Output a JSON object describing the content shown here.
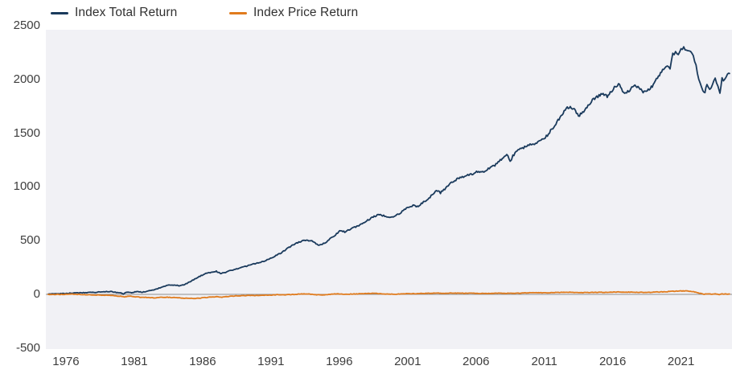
{
  "legend": {
    "items": [
      {
        "label": "Index Total Return",
        "color": "#1a3a5c"
      },
      {
        "label": "Index Price Return",
        "color": "#e07b1d"
      }
    ]
  },
  "axes": {
    "y_ticks": [
      "2500",
      "2000",
      "1500",
      "1000",
      "500",
      "0",
      "-500"
    ],
    "y_tick_values": [
      2500,
      2000,
      1500,
      1000,
      500,
      0,
      -500
    ],
    "x_ticks": [
      "1976",
      "1981",
      "1986",
      "1991",
      "1996",
      "2001",
      "2006",
      "2011",
      "2016",
      "2021"
    ],
    "x_tick_values": [
      1976,
      1981,
      1986,
      1991,
      1996,
      2001,
      2006,
      2011,
      2016,
      2021
    ]
  },
  "chart_data": {
    "type": "line",
    "title": "",
    "xlabel": "",
    "ylabel": "",
    "x_range": [
      1974.53,
      2024.73
    ],
    "y_range": [
      -509,
      2462
    ],
    "grid": false,
    "zero_line": true,
    "zero_line_color": "#909090",
    "plot_background": "#f1f1f5",
    "legend_position": "top-left",
    "series": [
      {
        "name": "Index Total Return",
        "color": "#1a3a5c",
        "points": [
          [
            1974.7,
            2
          ],
          [
            1975.2,
            5
          ],
          [
            1975.7,
            7
          ],
          [
            1976.2,
            10
          ],
          [
            1976.7,
            13
          ],
          [
            1977.2,
            15
          ],
          [
            1977.7,
            17
          ],
          [
            1978.2,
            20
          ],
          [
            1978.7,
            23
          ],
          [
            1979.2,
            27
          ],
          [
            1979.6,
            20
          ],
          [
            1980.0,
            12
          ],
          [
            1980.2,
            4
          ],
          [
            1980.5,
            22
          ],
          [
            1980.8,
            16
          ],
          [
            1981.2,
            25
          ],
          [
            1981.6,
            21
          ],
          [
            1982.0,
            30
          ],
          [
            1982.4,
            40
          ],
          [
            1982.8,
            58
          ],
          [
            1983.2,
            76
          ],
          [
            1983.6,
            88
          ],
          [
            1984.0,
            86
          ],
          [
            1984.3,
            80
          ],
          [
            1984.7,
            92
          ],
          [
            1985.1,
            118
          ],
          [
            1985.5,
            148
          ],
          [
            1985.9,
            175
          ],
          [
            1986.3,
            197
          ],
          [
            1986.7,
            209
          ],
          [
            1987.0,
            215
          ],
          [
            1987.3,
            195
          ],
          [
            1987.6,
            202
          ],
          [
            1988.0,
            221
          ],
          [
            1988.4,
            233
          ],
          [
            1988.8,
            247
          ],
          [
            1989.2,
            263
          ],
          [
            1989.6,
            277
          ],
          [
            1990.0,
            291
          ],
          [
            1990.4,
            306
          ],
          [
            1990.8,
            324
          ],
          [
            1991.2,
            350
          ],
          [
            1991.6,
            375
          ],
          [
            1992.0,
            408
          ],
          [
            1992.4,
            443
          ],
          [
            1992.8,
            474
          ],
          [
            1993.2,
            493
          ],
          [
            1993.6,
            506
          ],
          [
            1994.0,
            497
          ],
          [
            1994.3,
            468
          ],
          [
            1994.6,
            459
          ],
          [
            1995.0,
            480
          ],
          [
            1995.4,
            523
          ],
          [
            1995.8,
            563
          ],
          [
            1996.1,
            594
          ],
          [
            1996.4,
            582
          ],
          [
            1996.8,
            607
          ],
          [
            1997.2,
            626
          ],
          [
            1997.6,
            650
          ],
          [
            1998.0,
            684
          ],
          [
            1998.4,
            714
          ],
          [
            1998.7,
            733
          ],
          [
            1999.0,
            742
          ],
          [
            1999.4,
            724
          ],
          [
            1999.8,
            716
          ],
          [
            2000.2,
            738
          ],
          [
            2000.6,
            772
          ],
          [
            2001.0,
            806
          ],
          [
            2001.4,
            828
          ],
          [
            2001.7,
            816
          ],
          [
            2002.0,
            845
          ],
          [
            2002.4,
            880
          ],
          [
            2002.8,
            925
          ],
          [
            2003.1,
            965
          ],
          [
            2003.4,
            945
          ],
          [
            2003.8,
            990
          ],
          [
            2004.2,
            1045
          ],
          [
            2004.6,
            1070
          ],
          [
            2005.0,
            1090
          ],
          [
            2005.4,
            1110
          ],
          [
            2005.8,
            1125
          ],
          [
            2006.2,
            1145
          ],
          [
            2006.5,
            1138
          ],
          [
            2006.9,
            1165
          ],
          [
            2007.3,
            1195
          ],
          [
            2007.7,
            1235
          ],
          [
            2008.0,
            1280
          ],
          [
            2008.25,
            1310
          ],
          [
            2008.5,
            1230
          ],
          [
            2008.7,
            1290
          ],
          [
            2009.0,
            1330
          ],
          [
            2009.4,
            1360
          ],
          [
            2009.8,
            1390
          ],
          [
            2010.2,
            1400
          ],
          [
            2010.6,
            1420
          ],
          [
            2011.0,
            1445
          ],
          [
            2011.3,
            1495
          ],
          [
            2011.7,
            1560
          ],
          [
            2012.0,
            1620
          ],
          [
            2012.3,
            1680
          ],
          [
            2012.6,
            1730
          ],
          [
            2012.9,
            1750
          ],
          [
            2013.2,
            1720
          ],
          [
            2013.5,
            1660
          ],
          [
            2013.8,
            1690
          ],
          [
            2014.2,
            1750
          ],
          [
            2014.6,
            1820
          ],
          [
            2015.0,
            1850
          ],
          [
            2015.3,
            1870
          ],
          [
            2015.6,
            1840
          ],
          [
            2015.9,
            1890
          ],
          [
            2016.2,
            1940
          ],
          [
            2016.5,
            1955
          ],
          [
            2016.8,
            1880
          ],
          [
            2017.1,
            1890
          ],
          [
            2017.4,
            1920
          ],
          [
            2017.7,
            1940
          ],
          [
            2018.0,
            1905
          ],
          [
            2018.3,
            1880
          ],
          [
            2018.6,
            1910
          ],
          [
            2018.9,
            1930
          ],
          [
            2019.2,
            2000
          ],
          [
            2019.5,
            2060
          ],
          [
            2019.8,
            2110
          ],
          [
            2020.0,
            2140
          ],
          [
            2020.2,
            2110
          ],
          [
            2020.4,
            2230
          ],
          [
            2020.6,
            2260
          ],
          [
            2020.8,
            2245
          ],
          [
            2021.0,
            2270
          ],
          [
            2021.2,
            2295
          ],
          [
            2021.4,
            2260
          ],
          [
            2021.6,
            2280
          ],
          [
            2021.8,
            2250
          ],
          [
            2022.0,
            2180
          ],
          [
            2022.2,
            2060
          ],
          [
            2022.4,
            1960
          ],
          [
            2022.6,
            1900
          ],
          [
            2022.75,
            1870
          ],
          [
            2022.9,
            1960
          ],
          [
            2023.1,
            1915
          ],
          [
            2023.3,
            1945
          ],
          [
            2023.5,
            2005
          ],
          [
            2023.7,
            1940
          ],
          [
            2023.85,
            1885
          ],
          [
            2024.0,
            2010
          ],
          [
            2024.2,
            1990
          ],
          [
            2024.4,
            2035
          ],
          [
            2024.55,
            2055
          ]
        ]
      },
      {
        "name": "Index Price Return",
        "color": "#e07b1d",
        "points": [
          [
            1974.7,
            0
          ],
          [
            1975.5,
            -1
          ],
          [
            1976.0,
            0
          ],
          [
            1976.5,
            1
          ],
          [
            1977.0,
            -1
          ],
          [
            1977.5,
            -3
          ],
          [
            1978.0,
            -5
          ],
          [
            1978.5,
            -7
          ],
          [
            1979.0,
            -9
          ],
          [
            1979.5,
            -12
          ],
          [
            1980.0,
            -18
          ],
          [
            1980.3,
            -24
          ],
          [
            1980.6,
            -16
          ],
          [
            1981.0,
            -22
          ],
          [
            1981.5,
            -27
          ],
          [
            1982.0,
            -30
          ],
          [
            1982.5,
            -32
          ],
          [
            1983.0,
            -28
          ],
          [
            1983.5,
            -27
          ],
          [
            1984.0,
            -30
          ],
          [
            1984.5,
            -35
          ],
          [
            1985.0,
            -37
          ],
          [
            1985.5,
            -38
          ],
          [
            1986.0,
            -32
          ],
          [
            1986.5,
            -26
          ],
          [
            1987.0,
            -22
          ],
          [
            1987.5,
            -26
          ],
          [
            1988.0,
            -18
          ],
          [
            1988.5,
            -14
          ],
          [
            1989.0,
            -12
          ],
          [
            1989.5,
            -10
          ],
          [
            1990.0,
            -11
          ],
          [
            1990.5,
            -9
          ],
          [
            1991.0,
            -6
          ],
          [
            1991.5,
            -3
          ],
          [
            1992.0,
            -4
          ],
          [
            1992.5,
            -1
          ],
          [
            1993.0,
            2
          ],
          [
            1993.5,
            4
          ],
          [
            1994.0,
            0
          ],
          [
            1994.5,
            -5
          ],
          [
            1995.0,
            -3
          ],
          [
            1995.5,
            2
          ],
          [
            1996.0,
            4
          ],
          [
            1996.5,
            1
          ],
          [
            1997.0,
            3
          ],
          [
            1997.5,
            5
          ],
          [
            1998.0,
            7
          ],
          [
            1998.5,
            9
          ],
          [
            1999.0,
            7
          ],
          [
            1999.5,
            3
          ],
          [
            2000.0,
            1
          ],
          [
            2000.5,
            3
          ],
          [
            2001.0,
            6
          ],
          [
            2001.5,
            7
          ],
          [
            2002.0,
            8
          ],
          [
            2002.5,
            10
          ],
          [
            2003.0,
            12
          ],
          [
            2003.5,
            10
          ],
          [
            2004.0,
            11
          ],
          [
            2004.5,
            11
          ],
          [
            2005.0,
            11
          ],
          [
            2005.5,
            10
          ],
          [
            2006.0,
            9
          ],
          [
            2006.5,
            8
          ],
          [
            2007.0,
            9
          ],
          [
            2007.5,
            11
          ],
          [
            2008.0,
            12
          ],
          [
            2008.5,
            9
          ],
          [
            2009.0,
            11
          ],
          [
            2009.5,
            13
          ],
          [
            2010.0,
            14
          ],
          [
            2010.5,
            15
          ],
          [
            2011.0,
            15
          ],
          [
            2011.5,
            16
          ],
          [
            2012.0,
            18
          ],
          [
            2012.5,
            20
          ],
          [
            2013.0,
            19
          ],
          [
            2013.5,
            16
          ],
          [
            2014.0,
            17
          ],
          [
            2014.5,
            19
          ],
          [
            2015.0,
            20
          ],
          [
            2015.5,
            19
          ],
          [
            2016.0,
            21
          ],
          [
            2016.5,
            22
          ],
          [
            2017.0,
            21
          ],
          [
            2017.5,
            21
          ],
          [
            2018.0,
            19
          ],
          [
            2018.5,
            18
          ],
          [
            2019.0,
            20
          ],
          [
            2019.5,
            23
          ],
          [
            2020.0,
            25
          ],
          [
            2020.5,
            29
          ],
          [
            2021.0,
            31
          ],
          [
            2021.3,
            33
          ],
          [
            2021.6,
            30
          ],
          [
            2022.0,
            23
          ],
          [
            2022.4,
            9
          ],
          [
            2022.7,
            1
          ],
          [
            2022.9,
            5
          ],
          [
            2023.2,
            2
          ],
          [
            2023.5,
            5
          ],
          [
            2023.8,
            -1
          ],
          [
            2024.0,
            4
          ],
          [
            2024.3,
            2
          ],
          [
            2024.55,
            4
          ]
        ]
      }
    ]
  }
}
